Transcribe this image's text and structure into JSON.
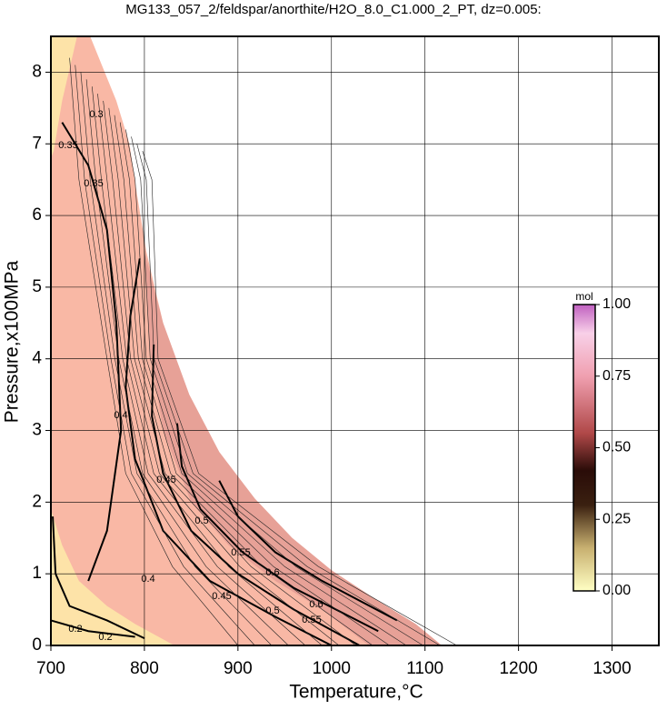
{
  "chart_data": {
    "type": "contour",
    "title": "MG133_057_2/feldspar/anorthite/H2O_8.0_C1.000_2_PT, dz=0.005:",
    "x_label": "Temperature,°C",
    "y_label": "Pressure,x100MPa",
    "xlim": [
      700,
      1350
    ],
    "ylim": [
      0,
      8.5
    ],
    "xticks": [
      700,
      800,
      900,
      1000,
      1100,
      1200,
      1300
    ],
    "yticks": [
      0,
      1,
      2,
      3,
      4,
      5,
      6,
      7,
      8
    ],
    "grid": true,
    "fill_color": "#f9b8a5",
    "colorbar": {
      "label": "mol",
      "lim": [
        0,
        1
      ],
      "ticks": [
        {
          "value": 0,
          "label": "0.00"
        },
        {
          "value": 0.25,
          "label": "0.25"
        },
        {
          "value": 0.5,
          "label": "0.50"
        },
        {
          "value": 0.75,
          "label": "0.75"
        },
        {
          "value": 1,
          "label": "1.00"
        }
      ]
    },
    "contour_labels": [
      "0.3",
      "0.35",
      "0.35",
      "0.4",
      "0.45",
      "0.5",
      "0.55",
      "0.6",
      "0.4",
      "0.45",
      "0.5",
      "0.55",
      "0.6",
      "0.2",
      "0.2"
    ]
  }
}
